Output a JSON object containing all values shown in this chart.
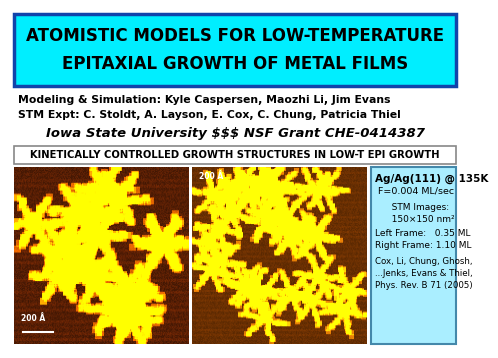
{
  "title_line1": "ATOMISTIC MODELS FOR LOW-TEMPERATURE",
  "title_line2": "EPITAXIAL GROWTH OF METAL FILMS",
  "title_bg": "#00EEFF",
  "title_border": "#1144AA",
  "slide_bg": "#FFFFFF",
  "authors_line1": "Modeling & Simulation: Kyle Caspersen, Maozhi Li, Jim Evans",
  "authors_line2": "STM Expt: C. Stoldt, A. Layson, E. Cox, C. Chung, Patricia Thiel",
  "affiliation": "Iowa State University $$$ NSF Grant CHE-0414387",
  "section_label": "KINETICALLY CONTROLLED GROWTH STRUCTURES IN LOW-T EPI GROWTH",
  "info_title": "Ag/Ag(111) @ 135K",
  "info_line1": " F=0.004 ML/sec",
  "info_line2": "   STM Images:",
  "info_line3": "   150×150 nm²",
  "info_line4": "Left Frame:   0.35 ML",
  "info_line5": "Right Frame: 1.10 ML",
  "info_line6": "Cox, Li, Chung, Ghosh,",
  "info_line7": "...Jenks, Evans & Thiel,",
  "info_line8": "Phys. Rev. B 71 (2005)",
  "info_bg": "#AAEEFF",
  "info_border": "#4488AA",
  "section_border": "#888888",
  "label_200A": "200 Å"
}
